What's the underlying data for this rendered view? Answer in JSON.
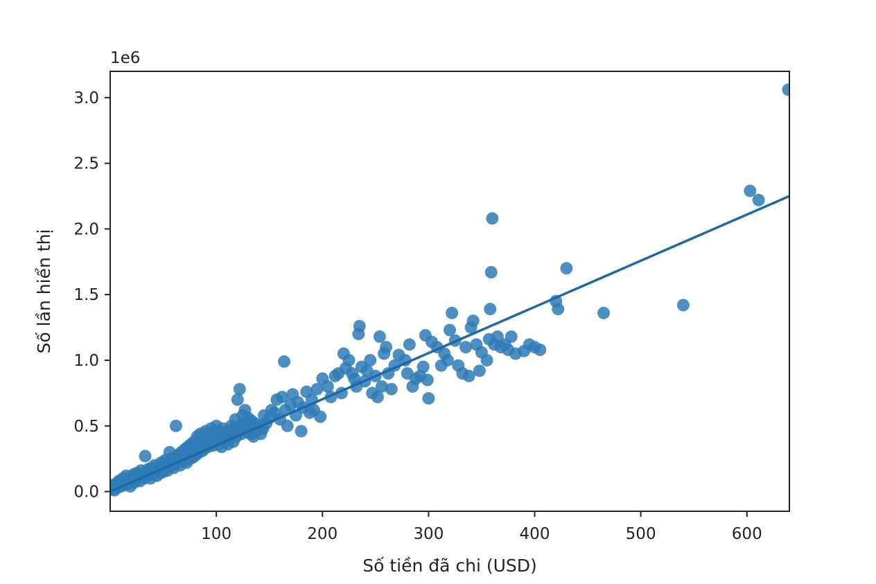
{
  "chart_data": {
    "type": "scatter",
    "title": "",
    "xlabel": "Số tiền đã chi (USD)",
    "ylabel": "Số lần hiển thị",
    "y_offset_text": "1e6",
    "xlim": [
      0,
      640
    ],
    "ylim": [
      -0.15,
      3.2
    ],
    "y_scale_factor": 1000000,
    "x_ticks": [
      100,
      200,
      300,
      400,
      500,
      600
    ],
    "x_tick_labels": [
      "100",
      "200",
      "300",
      "400",
      "500",
      "600"
    ],
    "y_ticks": [
      0.0,
      0.5,
      1.0,
      1.5,
      2.0,
      2.5,
      3.0
    ],
    "y_tick_labels": [
      "0.0",
      "0.5",
      "1.0",
      "1.5",
      "2.0",
      "2.5",
      "3.0"
    ],
    "grid": false,
    "legend": "none",
    "marker_color": "#2f7bb6",
    "line_color": "#1f68a8",
    "regression_line": {
      "x": [
        0,
        640
      ],
      "y": [
        0.0,
        2.25
      ]
    },
    "series": [
      {
        "points": [
          [
            1,
            0.03
          ],
          [
            2,
            0.02
          ],
          [
            3,
            0.05
          ],
          [
            4,
            0.01
          ],
          [
            5,
            0.04
          ],
          [
            6,
            0.06
          ],
          [
            7,
            0.03
          ],
          [
            8,
            0.08
          ],
          [
            9,
            0.05
          ],
          [
            10,
            0.04
          ],
          [
            11,
            0.07
          ],
          [
            12,
            0.1
          ],
          [
            13,
            0.06
          ],
          [
            14,
            0.05
          ],
          [
            15,
            0.12
          ],
          [
            16,
            0.08
          ],
          [
            17,
            0.06
          ],
          [
            18,
            0.09
          ],
          [
            19,
            0.04
          ],
          [
            20,
            0.11
          ],
          [
            21,
            0.08
          ],
          [
            22,
            0.13
          ],
          [
            23,
            0.07
          ],
          [
            24,
            0.1
          ],
          [
            25,
            0.14
          ],
          [
            26,
            0.09
          ],
          [
            27,
            0.12
          ],
          [
            28,
            0.08
          ],
          [
            29,
            0.16
          ],
          [
            30,
            0.11
          ],
          [
            31,
            0.13
          ],
          [
            32,
            0.1
          ],
          [
            33,
            0.27
          ],
          [
            34,
            0.15
          ],
          [
            35,
            0.12
          ],
          [
            36,
            0.17
          ],
          [
            37,
            0.13
          ],
          [
            38,
            0.1
          ],
          [
            39,
            0.18
          ],
          [
            40,
            0.14
          ],
          [
            41,
            0.16
          ],
          [
            42,
            0.2
          ],
          [
            43,
            0.15
          ],
          [
            44,
            0.12
          ],
          [
            45,
            0.19
          ],
          [
            46,
            0.17
          ],
          [
            47,
            0.14
          ],
          [
            48,
            0.22
          ],
          [
            49,
            0.18
          ],
          [
            50,
            0.15
          ],
          [
            51,
            0.2
          ],
          [
            52,
            0.24
          ],
          [
            53,
            0.18
          ],
          [
            54,
            0.16
          ],
          [
            55,
            0.22
          ],
          [
            56,
            0.3
          ],
          [
            57,
            0.19
          ],
          [
            58,
            0.25
          ],
          [
            59,
            0.21
          ],
          [
            60,
            0.18
          ],
          [
            61,
            0.26
          ],
          [
            62,
            0.5
          ],
          [
            63,
            0.22
          ],
          [
            64,
            0.28
          ],
          [
            65,
            0.24
          ],
          [
            66,
            0.2
          ],
          [
            67,
            0.3
          ],
          [
            68,
            0.26
          ],
          [
            69,
            0.23
          ],
          [
            70,
            0.32
          ],
          [
            71,
            0.27
          ],
          [
            72,
            0.22
          ],
          [
            73,
            0.34
          ],
          [
            74,
            0.29
          ],
          [
            75,
            0.25
          ],
          [
            76,
            0.36
          ],
          [
            77,
            0.3
          ],
          [
            78,
            0.26
          ],
          [
            79,
            0.38
          ],
          [
            80,
            0.32
          ],
          [
            81,
            0.28
          ],
          [
            82,
            0.42
          ],
          [
            83,
            0.34
          ],
          [
            84,
            0.3
          ],
          [
            85,
            0.44
          ],
          [
            86,
            0.36
          ],
          [
            87,
            0.31
          ],
          [
            88,
            0.4
          ],
          [
            89,
            0.33
          ],
          [
            90,
            0.46
          ],
          [
            91,
            0.38
          ],
          [
            92,
            0.34
          ],
          [
            93,
            0.42
          ],
          [
            94,
            0.36
          ],
          [
            95,
            0.48
          ],
          [
            96,
            0.4
          ],
          [
            97,
            0.35
          ],
          [
            98,
            0.44
          ],
          [
            99,
            0.38
          ],
          [
            100,
            0.5
          ],
          [
            101,
            0.42
          ],
          [
            102,
            0.36
          ],
          [
            103,
            0.46
          ],
          [
            104,
            0.4
          ],
          [
            105,
            0.34
          ],
          [
            106,
            0.48
          ],
          [
            107,
            0.42
          ],
          [
            108,
            0.38
          ],
          [
            109,
            0.44
          ],
          [
            110,
            0.4
          ],
          [
            111,
            0.36
          ],
          [
            112,
            0.46
          ],
          [
            113,
            0.42
          ],
          [
            114,
            0.5
          ],
          [
            115,
            0.44
          ],
          [
            116,
            0.38
          ],
          [
            117,
            0.48
          ],
          [
            118,
            0.55
          ],
          [
            119,
            0.42
          ],
          [
            120,
            0.7
          ],
          [
            121,
            0.46
          ],
          [
            122,
            0.78
          ],
          [
            123,
            0.5
          ],
          [
            124,
            0.44
          ],
          [
            125,
            0.58
          ],
          [
            126,
            0.48
          ],
          [
            127,
            0.62
          ],
          [
            128,
            0.52
          ],
          [
            129,
            0.46
          ],
          [
            130,
            0.56
          ],
          [
            131,
            0.5
          ],
          [
            132,
            0.44
          ],
          [
            133,
            0.54
          ],
          [
            134,
            0.48
          ],
          [
            135,
            0.42
          ],
          [
            136,
            0.52
          ],
          [
            138,
            0.46
          ],
          [
            140,
            0.5
          ],
          [
            142,
            0.44
          ],
          [
            144,
            0.48
          ],
          [
            145,
            0.58
          ],
          [
            147,
            0.52
          ],
          [
            150,
            0.56
          ],
          [
            152,
            0.62
          ],
          [
            155,
            0.6
          ],
          [
            157,
            0.7
          ],
          [
            160,
            0.55
          ],
          [
            162,
            0.72
          ],
          [
            164,
            0.99
          ],
          [
            165,
            0.62
          ],
          [
            167,
            0.5
          ],
          [
            170,
            0.66
          ],
          [
            172,
            0.74
          ],
          [
            175,
            0.58
          ],
          [
            177,
            0.68
          ],
          [
            180,
            0.46
          ],
          [
            182,
            0.64
          ],
          [
            185,
            0.76
          ],
          [
            188,
            0.6
          ],
          [
            190,
            0.7
          ],
          [
            192,
            0.62
          ],
          [
            195,
            0.78
          ],
          [
            198,
            0.57
          ],
          [
            200,
            0.86
          ],
          [
            205,
            0.8
          ],
          [
            208,
            0.72
          ],
          [
            212,
            0.88
          ],
          [
            215,
            0.9
          ],
          [
            218,
            0.75
          ],
          [
            220,
            1.05
          ],
          [
            222,
            0.94
          ],
          [
            225,
            1.0
          ],
          [
            228,
            0.9
          ],
          [
            230,
            0.86
          ],
          [
            232,
            0.8
          ],
          [
            234,
            1.2
          ],
          [
            235,
            1.26
          ],
          [
            237,
            0.95
          ],
          [
            240,
            0.84
          ],
          [
            242,
            0.92
          ],
          [
            245,
            1.0
          ],
          [
            247,
            0.75
          ],
          [
            250,
            0.88
          ],
          [
            252,
            0.72
          ],
          [
            254,
            1.18
          ],
          [
            256,
            0.8
          ],
          [
            258,
            1.05
          ],
          [
            260,
            1.1
          ],
          [
            262,
            0.9
          ],
          [
            265,
            0.78
          ],
          [
            268,
            0.96
          ],
          [
            272,
            1.04
          ],
          [
            278,
            1.0
          ],
          [
            280,
            0.9
          ],
          [
            282,
            1.12
          ],
          [
            285,
            0.8
          ],
          [
            288,
            0.86
          ],
          [
            292,
            0.88
          ],
          [
            295,
            0.95
          ],
          [
            297,
            1.19
          ],
          [
            299,
            0.85
          ],
          [
            300,
            0.71
          ],
          [
            303,
            1.14
          ],
          [
            308,
            1.1
          ],
          [
            312,
            0.96
          ],
          [
            315,
            1.05
          ],
          [
            318,
            1.0
          ],
          [
            320,
            1.23
          ],
          [
            322,
            1.36
          ],
          [
            325,
            1.15
          ],
          [
            328,
            0.96
          ],
          [
            332,
            0.9
          ],
          [
            335,
            1.1
          ],
          [
            338,
            0.88
          ],
          [
            340,
            1.25
          ],
          [
            342,
            1.3
          ],
          [
            345,
            1.12
          ],
          [
            348,
            0.92
          ],
          [
            350,
            1.06
          ],
          [
            355,
            1.0
          ],
          [
            357,
            1.16
          ],
          [
            358,
            1.39
          ],
          [
            359,
            1.67
          ],
          [
            360,
            2.08
          ],
          [
            362,
            1.12
          ],
          [
            365,
            1.18
          ],
          [
            368,
            1.1
          ],
          [
            372,
            1.12
          ],
          [
            375,
            1.08
          ],
          [
            378,
            1.18
          ],
          [
            382,
            1.05
          ],
          [
            390,
            1.07
          ],
          [
            395,
            1.12
          ],
          [
            400,
            1.1
          ],
          [
            405,
            1.08
          ],
          [
            420,
            1.45
          ],
          [
            422,
            1.39
          ],
          [
            430,
            1.7
          ],
          [
            465,
            1.36
          ],
          [
            540,
            1.42
          ],
          [
            603,
            2.29
          ],
          [
            611,
            2.22
          ],
          [
            639,
            3.06
          ]
        ]
      }
    ]
  }
}
